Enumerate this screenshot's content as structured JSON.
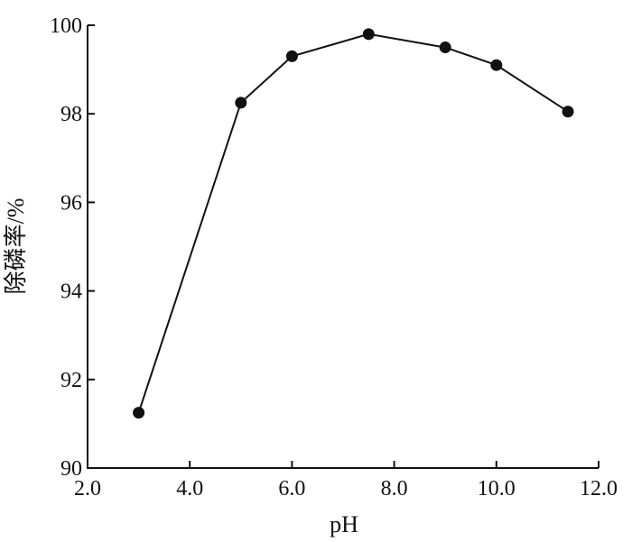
{
  "chart_data": {
    "type": "line",
    "xlabel": "pH",
    "ylabel": "除磷率/%",
    "xlim": [
      2.0,
      12.0
    ],
    "ylim": [
      90,
      100
    ],
    "x_ticks": [
      "2.0",
      "4.0",
      "6.0",
      "8.0",
      "10.0",
      "12.0"
    ],
    "y_ticks": [
      "90",
      "92",
      "94",
      "96",
      "98",
      "100"
    ],
    "grid": false,
    "series": [
      {
        "x": [
          3.0,
          5.0,
          6.0,
          7.5,
          9.0,
          10.0,
          11.4
        ],
        "y": [
          91.25,
          98.25,
          99.3,
          99.8,
          99.5,
          99.1,
          98.05
        ]
      }
    ]
  }
}
